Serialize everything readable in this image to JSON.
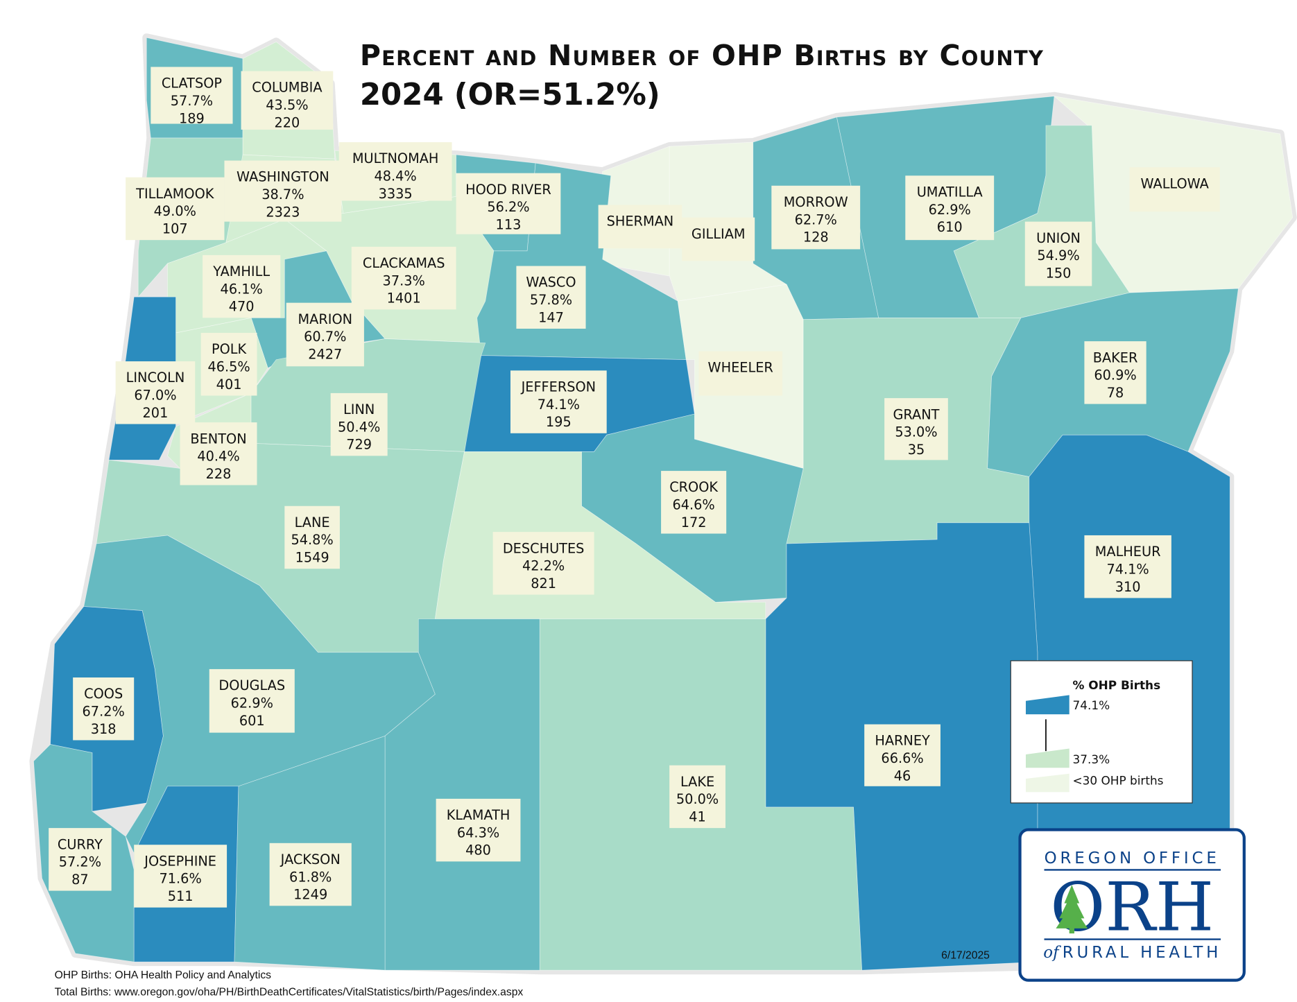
{
  "title": {
    "line1": "Percent and Number of OHP Births by County",
    "line2": "2024 (OR=51.2%)"
  },
  "colors": {
    "dark": "#2b8cbe",
    "teal": "#66bac1",
    "light_green": "#a8dcc8",
    "lighter_green": "#d3eed3",
    "lowest_births": "#eef6e6",
    "label_box": "#f4f4dc",
    "logo_blue": "#0b4289",
    "logo_tree": "#56b04a"
  },
  "counties": [
    {
      "name": "CLATSOP",
      "pct": "57.7%",
      "births": "189",
      "color": "#66bac1"
    },
    {
      "name": "COLUMBIA",
      "pct": "43.5%",
      "births": "220",
      "color": "#d3eed3"
    },
    {
      "name": "TILLAMOOK",
      "pct": "49.0%",
      "births": "107",
      "color": "#a8dcc8"
    },
    {
      "name": "WASHINGTON",
      "pct": "38.7%",
      "births": "2323",
      "color": "#d3eed3"
    },
    {
      "name": "MULTNOMAH",
      "pct": "48.4%",
      "births": "3335",
      "color": "#d3eed3"
    },
    {
      "name": "HOOD RIVER",
      "pct": "56.2%",
      "births": "113",
      "color": "#66bac1"
    },
    {
      "name": "SHERMAN",
      "pct": "",
      "births": "",
      "color": "#eef6e6"
    },
    {
      "name": "GILLIAM",
      "pct": "",
      "births": "",
      "color": "#eef6e6"
    },
    {
      "name": "MORROW",
      "pct": "62.7%",
      "births": "128",
      "color": "#66bac1"
    },
    {
      "name": "UMATILLA",
      "pct": "62.9%",
      "births": "610",
      "color": "#66bac1"
    },
    {
      "name": "WALLOWA",
      "pct": "",
      "births": "",
      "color": "#eef6e6"
    },
    {
      "name": "UNION",
      "pct": "54.9%",
      "births": "150",
      "color": "#a8dcc8"
    },
    {
      "name": "CLACKAMAS",
      "pct": "37.3%",
      "births": "1401",
      "color": "#d3eed3"
    },
    {
      "name": "YAMHILL",
      "pct": "46.1%",
      "births": "470",
      "color": "#d3eed3"
    },
    {
      "name": "MARION",
      "pct": "60.7%",
      "births": "2427",
      "color": "#66bac1"
    },
    {
      "name": "WASCO",
      "pct": "57.8%",
      "births": "147",
      "color": "#66bac1"
    },
    {
      "name": "POLK",
      "pct": "46.5%",
      "births": "401",
      "color": "#d3eed3"
    },
    {
      "name": "WHEELER",
      "pct": "",
      "births": "",
      "color": "#eef6e6"
    },
    {
      "name": "JEFFERSON",
      "pct": "74.1%",
      "births": "195",
      "color": "#2b8cbe"
    },
    {
      "name": "LINCOLN",
      "pct": "67.0%",
      "births": "201",
      "color": "#2b8cbe"
    },
    {
      "name": "BENTON",
      "pct": "40.4%",
      "births": "228",
      "color": "#d3eed3"
    },
    {
      "name": "LINN",
      "pct": "50.4%",
      "births": "729",
      "color": "#a8dcc8"
    },
    {
      "name": "BAKER",
      "pct": "60.9%",
      "births": "78",
      "color": "#66bac1"
    },
    {
      "name": "GRANT",
      "pct": "53.0%",
      "births": "35",
      "color": "#a8dcc8"
    },
    {
      "name": "CROOK",
      "pct": "64.6%",
      "births": "172",
      "color": "#66bac1"
    },
    {
      "name": "LANE",
      "pct": "54.8%",
      "births": "1549",
      "color": "#a8dcc8"
    },
    {
      "name": "DESCHUTES",
      "pct": "42.2%",
      "births": "821",
      "color": "#d3eed3"
    },
    {
      "name": "MALHEUR",
      "pct": "74.1%",
      "births": "310",
      "color": "#2b8cbe"
    },
    {
      "name": "COOS",
      "pct": "67.2%",
      "births": "318",
      "color": "#2b8cbe"
    },
    {
      "name": "DOUGLAS",
      "pct": "62.9%",
      "births": "601",
      "color": "#66bac1"
    },
    {
      "name": "HARNEY",
      "pct": "66.6%",
      "births": "46",
      "color": "#2b8cbe"
    },
    {
      "name": "LAKE",
      "pct": "50.0%",
      "births": "41",
      "color": "#a8dcc8"
    },
    {
      "name": "KLAMATH",
      "pct": "64.3%",
      "births": "480",
      "color": "#66bac1"
    },
    {
      "name": "CURRY",
      "pct": "57.2%",
      "births": "87",
      "color": "#66bac1"
    },
    {
      "name": "JOSEPHINE",
      "pct": "71.6%",
      "births": "511",
      "color": "#2b8cbe"
    },
    {
      "name": "JACKSON",
      "pct": "61.8%",
      "births": "1249",
      "color": "#66bac1"
    }
  ],
  "legend": {
    "title": "% OHP Births",
    "max_label": "74.1%",
    "min_label": "37.3%",
    "low_label": "<30 OHP births",
    "max_color": "#2b8cbe",
    "min_color": "#c9e8cb",
    "low_color": "#eef6e6"
  },
  "logo": {
    "top": "OREGON OFFICE",
    "mark": "ORH",
    "bottom_of": "of",
    "bottom": "RURAL HEALTH"
  },
  "date": "6/17/2025",
  "footnotes": [
    "OHP Births: OHA Health Policy and Analytics",
    "Total Births: www.oregon.gov/oha/PH/BirthDeathCertificates/VitalStatistics/birth/Pages/index.aspx"
  ]
}
